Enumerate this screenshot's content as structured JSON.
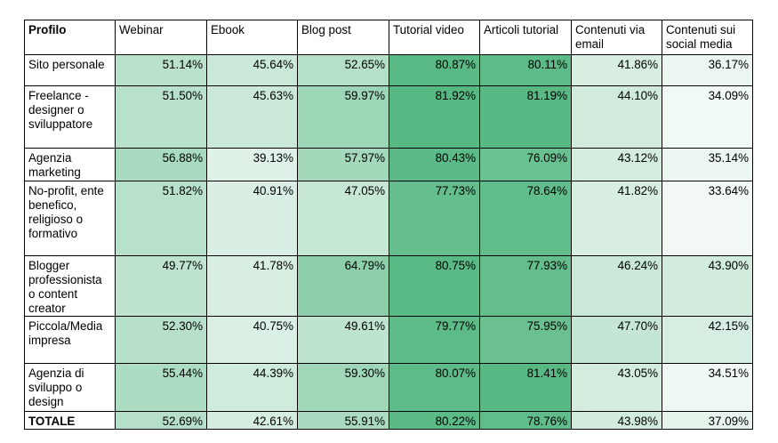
{
  "chart_data": {
    "type": "table",
    "columns": [
      "Profilo",
      "Webinar",
      "Ebook",
      "Blog post",
      "Tutorial video",
      "Articoli tutorial",
      "Contenuti via email",
      "Contenuti sui social media"
    ],
    "rows": [
      {
        "label": "Sito personale",
        "values": [
          "51.14%",
          "45.64%",
          "52.65%",
          "80.87%",
          "80.11%",
          "41.86%",
          "36.17%"
        ]
      },
      {
        "label": "Freelance - designer o sviluppatore",
        "values": [
          "51.50%",
          "45.63%",
          "59.97%",
          "81.92%",
          "81.19%",
          "44.10%",
          "34.09%"
        ]
      },
      {
        "label": "Agenzia marketing",
        "values": [
          "56.88%",
          "39.13%",
          "57.97%",
          "80.43%",
          "76.09%",
          "43.12%",
          "35.14%"
        ]
      },
      {
        "label": "No-profit, ente benefico, religioso o formativo",
        "values": [
          "51.82%",
          "40.91%",
          "47.05%",
          "77.73%",
          "78.64%",
          "41.82%",
          "33.64%"
        ]
      },
      {
        "label": "Blogger professionista o content creator",
        "values": [
          "49.77%",
          "41.78%",
          "64.79%",
          "80.75%",
          "77.93%",
          "46.24%",
          "43.90%"
        ]
      },
      {
        "label": "Piccola/Media impresa",
        "values": [
          "52.30%",
          "40.75%",
          "49.61%",
          "79.77%",
          "75.95%",
          "47.70%",
          "42.15%"
        ]
      },
      {
        "label": "Agenzia di sviluppo o design",
        "values": [
          "55.44%",
          "44.39%",
          "59.30%",
          "80.07%",
          "81.41%",
          "43.05%",
          "34.51%"
        ]
      }
    ],
    "total": {
      "label": "TOTALE",
      "values": [
        "52.69%",
        "42.61%",
        "55.91%",
        "80.22%",
        "78.76%",
        "43.98%",
        "37.09%"
      ]
    },
    "colors": {
      "low": "#f4faf6",
      "high": "#56b883",
      "border": "#000000"
    }
  }
}
